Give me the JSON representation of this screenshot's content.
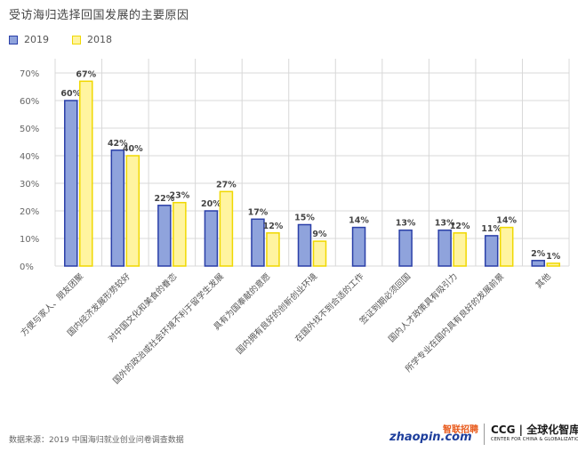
{
  "chart_data": {
    "type": "bar",
    "title": "受访海归选择回国发展的主要原因",
    "categories": [
      "方便与家人、朋友团聚",
      "国内经济发展形势较好",
      "对中国文化和美食的眷恋",
      "国外的政治或社会环境不利于留学生发展",
      "具有为国奉献的意愿",
      "国内拥有良好的创新创业环境",
      "在国外找不到合适的工作",
      "签证到期必须回国",
      "国内人才政策具有吸引力",
      "所学专业在国内具有良好的发展前景",
      "其他"
    ],
    "series": [
      {
        "name": "2019",
        "values": [
          60,
          42,
          22,
          20,
          17,
          15,
          14,
          13,
          13,
          11,
          2
        ]
      },
      {
        "name": "2018",
        "values": [
          67,
          40,
          23,
          27,
          12,
          9,
          null,
          null,
          12,
          14,
          1
        ]
      }
    ],
    "value_labels": {
      "2019": [
        "60%",
        "42%",
        "22%",
        "20%",
        "17%",
        "15%",
        "14%",
        "13%",
        "13%",
        "11%",
        "2%"
      ],
      "2018": [
        "67%",
        "40%",
        "23%",
        "27%",
        "12%",
        "9%",
        null,
        null,
        "12%",
        "14%",
        "1%"
      ]
    },
    "y_ticks": [
      "0%",
      "10%",
      "20%",
      "30%",
      "40%",
      "50%",
      "60%",
      "70%"
    ],
    "ylim": [
      0,
      70
    ],
    "grid": true,
    "legend_position": "top-left",
    "colors": {
      "2019_fill": "#8fa3dc",
      "2019_stroke": "#2a3fa8",
      "2018_fill": "#fff4a0",
      "2018_stroke": "#f0d800",
      "grid": "#d8d8d8",
      "axis_text": "#666666"
    }
  },
  "footer": {
    "source": "数据来源：2019 中国海归就业创业问卷调查数据",
    "logo_zhaopin_top": "智联招聘",
    "logo_zhaopin_bottom": "zhaopin.com",
    "logo_ccg_top": "CCG | 全球化智库",
    "logo_ccg_bottom": "CENTER FOR CHINA & GLOBALIZATION"
  }
}
